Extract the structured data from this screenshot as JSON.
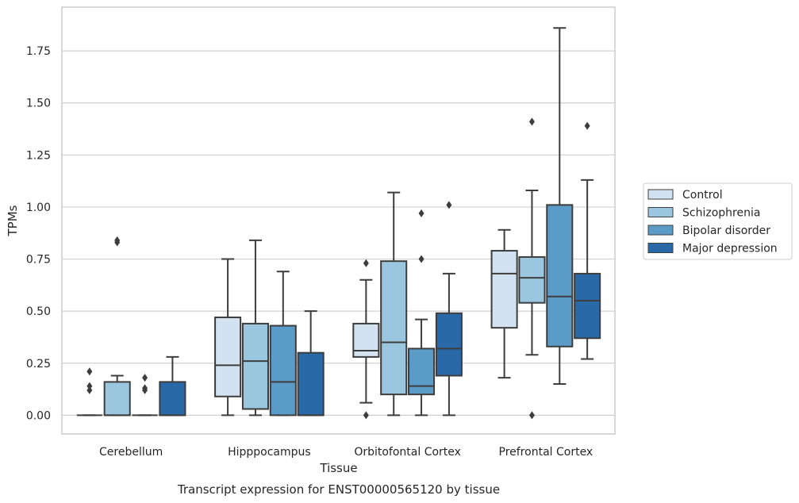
{
  "chart_data": {
    "type": "box",
    "xlabel": "Tissue",
    "ylabel": "TPMs",
    "caption": "Transcript expression for ENST00000565120 by tissue",
    "ylim": [
      -0.09,
      1.96
    ],
    "yticks": [
      "0.00",
      "0.25",
      "0.50",
      "0.75",
      "1.00",
      "1.25",
      "1.50",
      "1.75"
    ],
    "grid": "horizontal",
    "legend_position": "right, outside plot",
    "categories": [
      "Cerebellum",
      "Hipppocampus",
      "Orbitofontal Cortex",
      "Prefrontal Cortex"
    ],
    "series": [
      {
        "name": "Control",
        "color": "#d3e2f1",
        "boxes": [
          {
            "whislo": 0,
            "q1": 0,
            "med": 0,
            "q3": 0,
            "whishi": 0,
            "fliers": [
              0.21,
              0.14,
              0.12
            ]
          },
          {
            "whislo": 0,
            "q1": 0.09,
            "med": 0.24,
            "q3": 0.47,
            "whishi": 0.75,
            "fliers": []
          },
          {
            "whislo": 0.06,
            "q1": 0.28,
            "med": 0.31,
            "q3": 0.44,
            "whishi": 0.65,
            "fliers": [
              0.73,
              0.0
            ]
          },
          {
            "whislo": 0.18,
            "q1": 0.42,
            "med": 0.68,
            "q3": 0.79,
            "whishi": 0.89,
            "fliers": []
          }
        ]
      },
      {
        "name": "Schizophrenia",
        "color": "#9ac6df",
        "boxes": [
          {
            "whislo": 0,
            "q1": 0,
            "med": 0,
            "q3": 0.16,
            "whishi": 0.19,
            "fliers": [
              0.83,
              0.84
            ]
          },
          {
            "whislo": 0,
            "q1": 0.03,
            "med": 0.26,
            "q3": 0.44,
            "whishi": 0.84,
            "fliers": []
          },
          {
            "whislo": 0,
            "q1": 0.1,
            "med": 0.35,
            "q3": 0.74,
            "whishi": 1.07,
            "fliers": []
          },
          {
            "whislo": 0.29,
            "q1": 0.54,
            "med": 0.66,
            "q3": 0.76,
            "whishi": 1.08,
            "fliers": [
              1.41,
              0.0
            ]
          }
        ]
      },
      {
        "name": "Bipolar disorder",
        "color": "#5b9bc8",
        "boxes": [
          {
            "whislo": 0,
            "q1": 0,
            "med": 0,
            "q3": 0,
            "whishi": 0,
            "fliers": [
              0.18,
              0.13,
              0.12
            ]
          },
          {
            "whislo": 0,
            "q1": 0,
            "med": 0.16,
            "q3": 0.43,
            "whishi": 0.69,
            "fliers": []
          },
          {
            "whislo": 0,
            "q1": 0.1,
            "med": 0.14,
            "q3": 0.32,
            "whishi": 0.46,
            "fliers": [
              0.97,
              0.75
            ]
          },
          {
            "whislo": 0.15,
            "q1": 0.33,
            "med": 0.57,
            "q3": 1.01,
            "whishi": 1.86,
            "fliers": []
          }
        ]
      },
      {
        "name": "Major depression",
        "color": "#2a69a8",
        "boxes": [
          {
            "whislo": 0,
            "q1": 0,
            "med": 0,
            "q3": 0.16,
            "whishi": 0.28,
            "fliers": []
          },
          {
            "whislo": 0,
            "q1": 0,
            "med": 0,
            "q3": 0.3,
            "whishi": 0.5,
            "fliers": []
          },
          {
            "whislo": 0,
            "q1": 0.19,
            "med": 0.32,
            "q3": 0.49,
            "whishi": 0.68,
            "fliers": [
              1.01
            ]
          },
          {
            "whislo": 0.27,
            "q1": 0.37,
            "med": 0.55,
            "q3": 0.68,
            "whishi": 1.13,
            "fliers": [
              1.39
            ]
          }
        ]
      }
    ]
  }
}
